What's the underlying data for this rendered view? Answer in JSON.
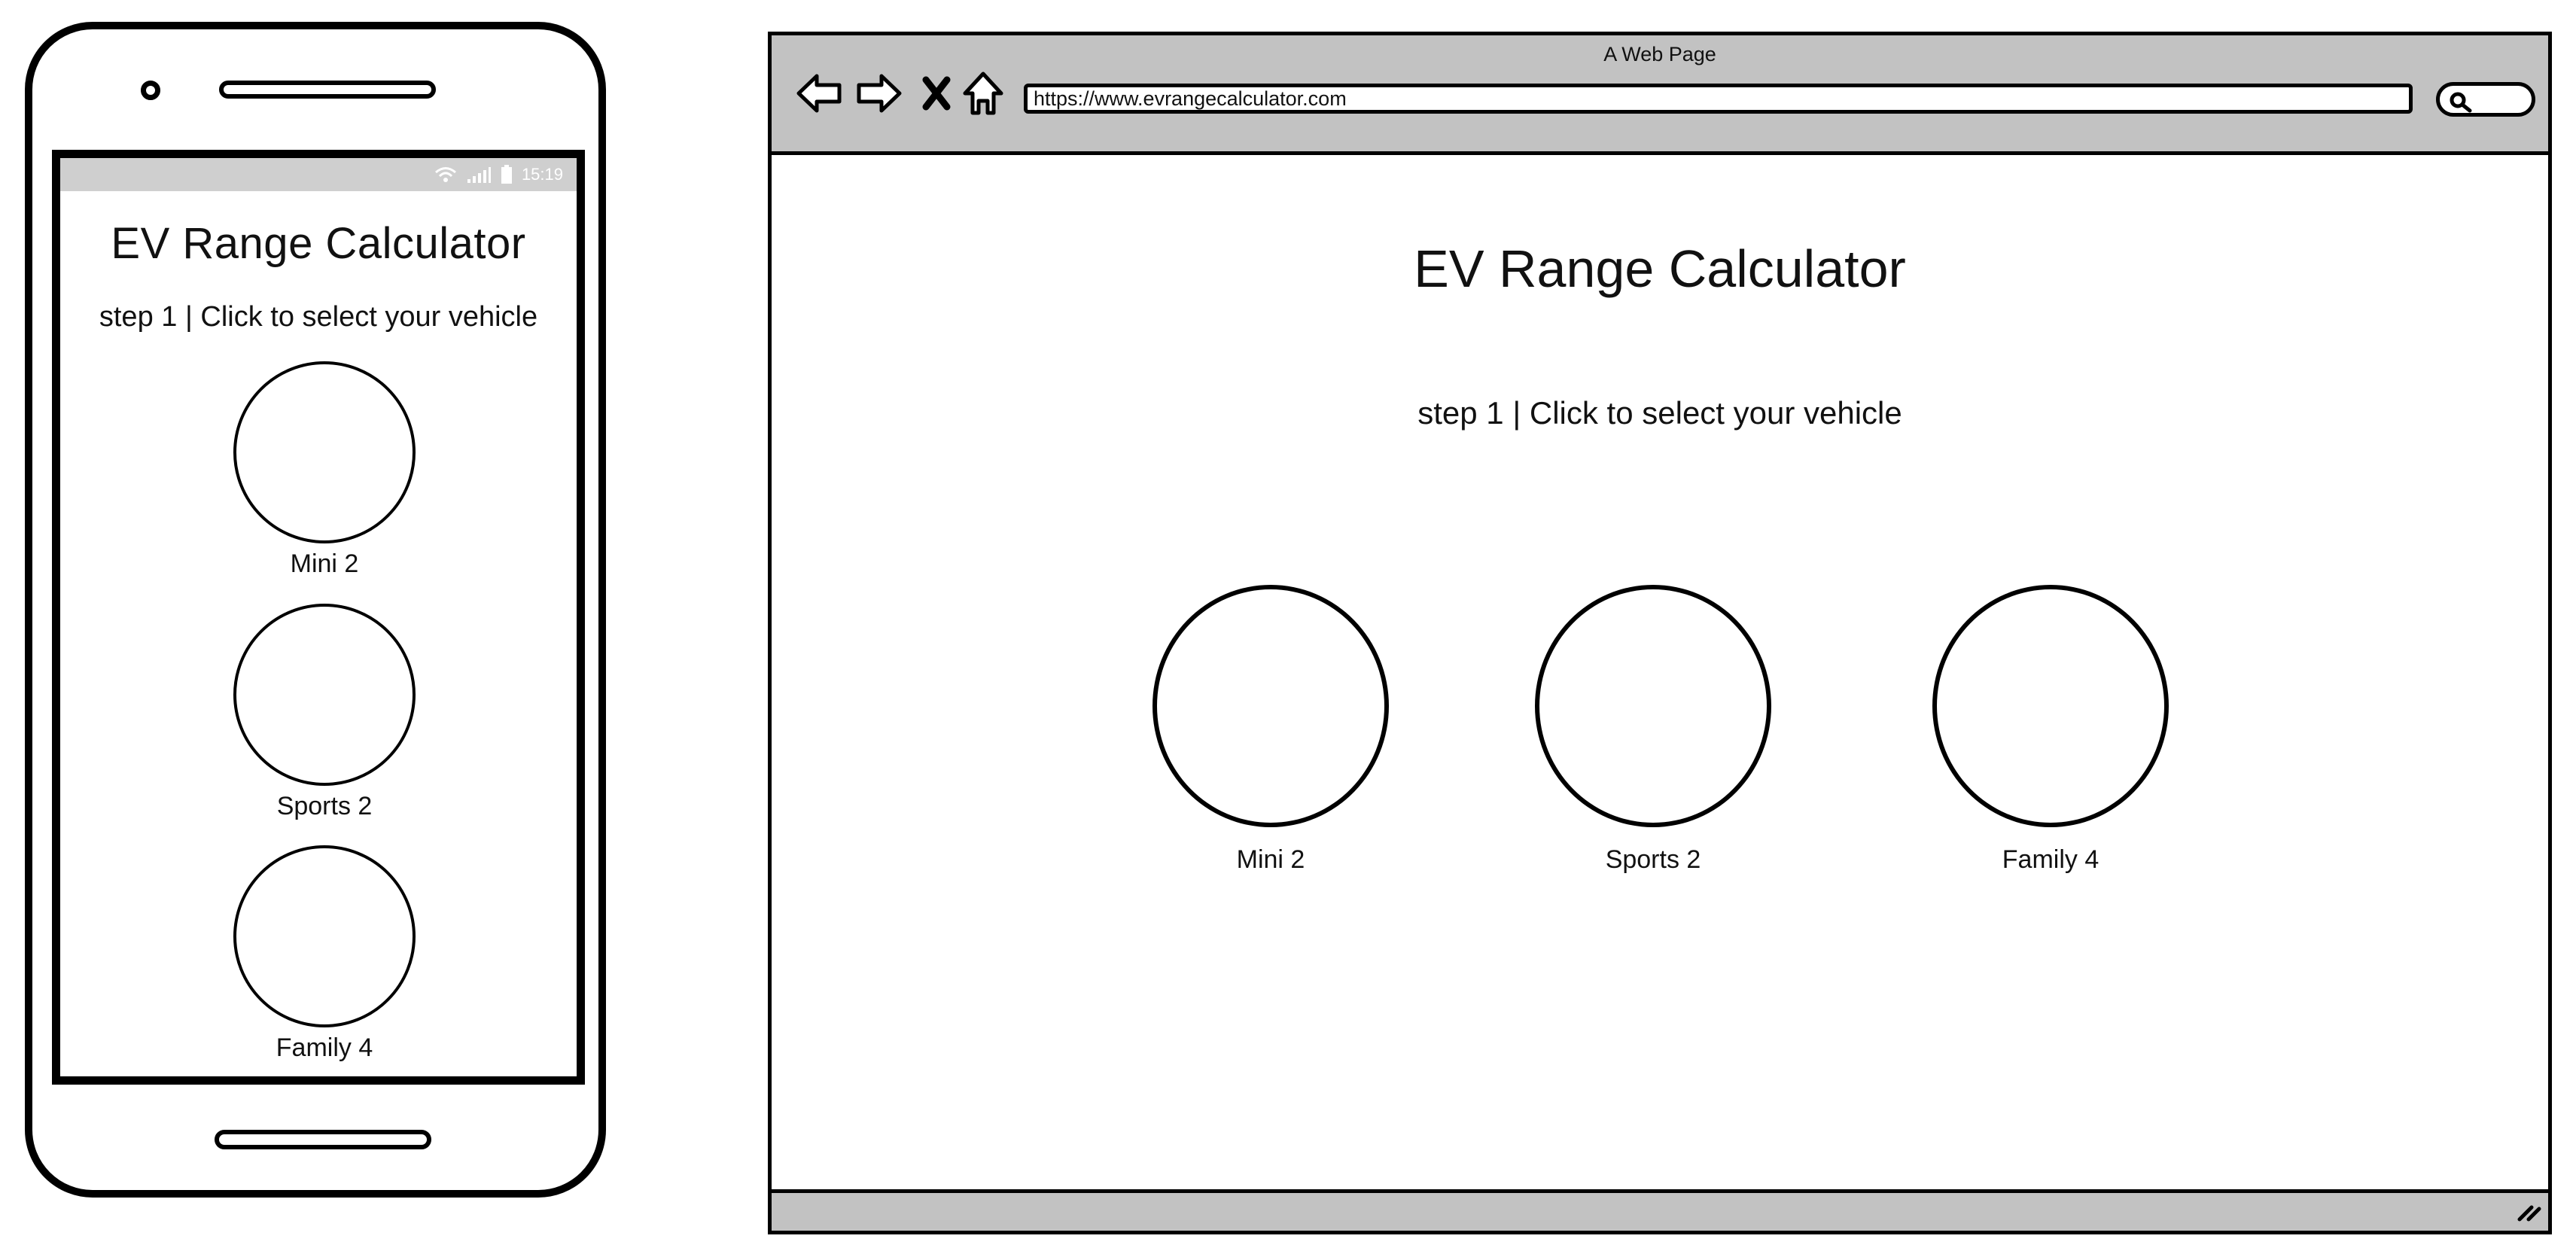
{
  "mobile": {
    "status_bar": {
      "time": "15:19"
    },
    "title": "EV Range Calculator",
    "subtitle": "step 1 | Click to select your vehicle",
    "vehicles": [
      {
        "label": "Mini 2"
      },
      {
        "label": "Sports 2"
      },
      {
        "label": "Family 4"
      }
    ]
  },
  "desktop": {
    "window_title": "A Web Page",
    "address_bar": {
      "url": "https://www.evrangecalculator.com"
    },
    "nav_icons": [
      "back-arrow-icon",
      "forward-arrow-icon",
      "close-x-icon",
      "home-icon"
    ],
    "title": "EV Range Calculator",
    "subtitle": "step 1 | Click to select your vehicle",
    "vehicles": [
      {
        "label": "Mini 2"
      },
      {
        "label": "Sports 2"
      },
      {
        "label": "Family 4"
      }
    ]
  },
  "colors": {
    "chrome_gray": "#c2c2c2",
    "status_bar_gray": "#cfcfcf",
    "outline": "#000000"
  }
}
